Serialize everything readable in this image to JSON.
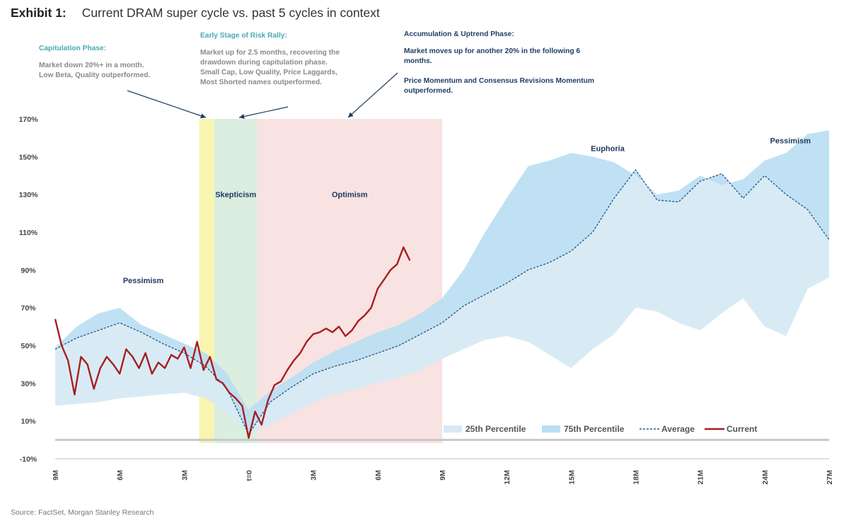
{
  "header": {
    "exhibit": "Exhibit 1:",
    "title": "Current DRAM super cycle vs. past 5 cycles in context"
  },
  "annotations": {
    "capitulation": {
      "heading": "Capitulation Phase:",
      "text": [
        "Market down 20%+ in a month.",
        "Low Beta, Quality outperformed."
      ]
    },
    "early_stage": {
      "heading": "Early Stage of Risk Rally:",
      "text": [
        "Market up for 2.5 months, recovering the",
        "drawdown during capitulation phase.",
        "Small Cap, Low Quality, Price Laggards,",
        "Most Shorted names outperformed."
      ]
    },
    "accumulation": {
      "heading": "Accumulation & Uptrend Phase:",
      "text": [
        "Market moves up for another 20% in the following 6",
        "months.",
        "",
        "Price Momentum and Consensus Revisions Momentum",
        "outperformed."
      ]
    }
  },
  "source": "Source: FactSet, Morgan Stanley Research",
  "chart_data": {
    "type": "area",
    "x_unit": "months relative to t=0 (trough)",
    "xlim": [
      -9,
      27
    ],
    "ylim": [
      -10,
      170
    ],
    "y_ticks": [
      -10,
      10,
      30,
      50,
      70,
      90,
      110,
      130,
      150,
      170
    ],
    "y_tick_labels": [
      "-10%",
      "10%",
      "30%",
      "50%",
      "70%",
      "90%",
      "110%",
      "130%",
      "150%",
      "170%"
    ],
    "x_ticks": [
      -9,
      -6,
      -3,
      0,
      3,
      6,
      9,
      12,
      15,
      18,
      21,
      24,
      27
    ],
    "x_tick_labels": [
      "9M",
      "6M",
      "3M",
      "t=0",
      "3M",
      "6M",
      "9M",
      "12M",
      "15M",
      "18M",
      "21M",
      "24M",
      "27M"
    ],
    "phases": [
      {
        "label": "",
        "x_start": -2.3,
        "x_end": -1.6,
        "color": "#f7f3a0"
      },
      {
        "label": "Skepticism",
        "x_start": -1.6,
        "x_end": 0.4,
        "color": "#d5ebd9"
      },
      {
        "label": "Optimism",
        "x_start": 0.4,
        "x_end": 9,
        "color": "#f7dedd"
      }
    ],
    "zone_labels": [
      {
        "text": "Pessimism",
        "x": -4.9,
        "y": 83
      },
      {
        "text": "Euphoria",
        "x": 16.7,
        "y": 153
      },
      {
        "text": "Pessimism",
        "x": 25.2,
        "y": 157
      }
    ],
    "series": [
      {
        "name": "25th Percentile",
        "color": "#d6eaf4",
        "style": "band"
      },
      {
        "name": "75th Percentile",
        "color": "#b9def3",
        "style": "band"
      },
      {
        "name": "Average",
        "color": "#2e5c8a",
        "style": "dashed"
      },
      {
        "name": "Current",
        "color": "#a81e22",
        "style": "solid"
      }
    ],
    "x": [
      -9,
      -8,
      -7,
      -6,
      -5,
      -4,
      -3,
      -2,
      -1,
      0,
      1,
      2,
      3,
      4,
      5,
      6,
      7,
      8,
      9,
      10,
      11,
      12,
      13,
      14,
      15,
      16,
      17,
      18,
      19,
      20,
      21,
      22,
      23,
      24,
      25,
      26,
      27
    ],
    "p25": [
      18,
      19,
      20,
      22,
      23,
      24,
      25,
      22,
      14,
      4,
      8,
      14,
      20,
      24,
      27,
      30,
      33,
      37,
      43,
      48,
      53,
      55,
      52,
      45,
      38,
      48,
      56,
      70,
      68,
      62,
      58,
      67,
      75,
      60,
      55,
      80,
      86
    ],
    "p75": [
      49,
      60,
      67,
      70,
      61,
      56,
      51,
      46,
      35,
      16,
      26,
      33,
      41,
      47,
      52,
      57,
      61,
      67,
      75,
      90,
      110,
      128,
      145,
      148,
      152,
      150,
      147,
      140,
      130,
      132,
      140,
      135,
      138,
      148,
      152,
      162,
      164
    ],
    "average": [
      48,
      54,
      58,
      62,
      57,
      51,
      46,
      39,
      27,
      3,
      20,
      28,
      35,
      39,
      42,
      46,
      50,
      56,
      62,
      71,
      77,
      83,
      90,
      94,
      100,
      110,
      128,
      143,
      127,
      126,
      137,
      141,
      128,
      140,
      130,
      122,
      106
    ],
    "current": {
      "x": [
        -9,
        -8.7,
        -8.4,
        -8.1,
        -7.8,
        -7.5,
        -7.2,
        -6.9,
        -6.6,
        -6.3,
        -6.0,
        -5.7,
        -5.4,
        -5.1,
        -4.8,
        -4.5,
        -4.2,
        -3.9,
        -3.6,
        -3.3,
        -3.0,
        -2.7,
        -2.4,
        -2.1,
        -1.8,
        -1.5,
        -1.2,
        -0.9,
        -0.6,
        -0.3,
        0.0,
        0.3,
        0.6,
        0.9,
        1.2,
        1.5,
        1.8,
        2.1,
        2.4,
        2.7,
        3.0,
        3.3,
        3.6,
        3.9,
        4.2,
        4.5,
        4.8,
        5.1,
        5.4,
        5.7,
        6.0,
        6.3,
        6.6,
        6.9,
        7.2,
        7.5
      ],
      "y": [
        64,
        50,
        42,
        24,
        44,
        40,
        27,
        38,
        44,
        40,
        35,
        48,
        44,
        38,
        46,
        35,
        41,
        38,
        45,
        43,
        49,
        38,
        52,
        37,
        44,
        32,
        30,
        25,
        22,
        18,
        1,
        15,
        8,
        21,
        29,
        31,
        37,
        42,
        46,
        52,
        56,
        57,
        59,
        57,
        60,
        55,
        58,
        63,
        66,
        70,
        80,
        85,
        90,
        93,
        102,
        95
      ]
    }
  }
}
